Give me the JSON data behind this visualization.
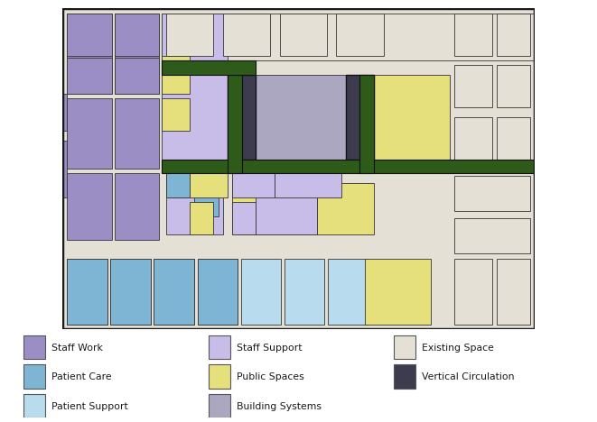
{
  "background_color": "#ffffff",
  "floor_bg": "#ece9e2",
  "border_color": "#222222",
  "colors": {
    "staff_work": "#9B8EC4",
    "staff_support": "#C8BDE8",
    "patient_care": "#7EB5D4",
    "patient_support": "#B8DCEE",
    "public_spaces": "#E5DF7C",
    "building_systems": "#ABA7C0",
    "existing_space": "#E5E0D5",
    "vertical_circ": "#3C3C4E",
    "corridor": "#2E5B1A",
    "wall": "#222222"
  },
  "legend": [
    {
      "label": "Staff Work",
      "color": "#9B8EC4",
      "col": 0,
      "row": 0
    },
    {
      "label": "Staff Support",
      "color": "#C8BDE8",
      "col": 1,
      "row": 0
    },
    {
      "label": "Existing Space",
      "color": "#E5E0D5",
      "col": 2,
      "row": 0
    },
    {
      "label": "Patient Care",
      "color": "#7EB5D4",
      "col": 0,
      "row": 1
    },
    {
      "label": "Public Spaces",
      "color": "#E5DF7C",
      "col": 1,
      "row": 1
    },
    {
      "label": "Vertical Circulation",
      "color": "#3C3C4E",
      "col": 2,
      "row": 1
    },
    {
      "label": "Patient Support",
      "color": "#B8DCEE",
      "col": 0,
      "row": 2
    },
    {
      "label": "Building Systems",
      "color": "#ABA7C0",
      "col": 1,
      "row": 2
    }
  ],
  "figsize": [
    6.61,
    4.68
  ],
  "dpi": 100
}
